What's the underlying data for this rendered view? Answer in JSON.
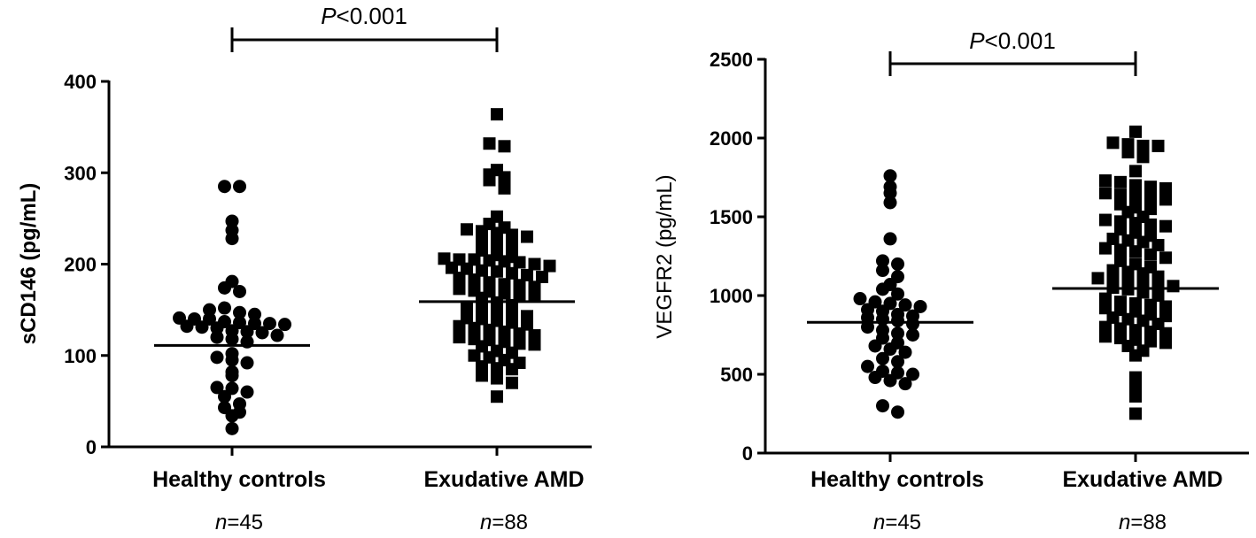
{
  "chart_data": [
    {
      "type": "scatter",
      "subtype": "dot-plot",
      "ylabel": "sCD146 (pg/mL)",
      "ylabel_bold": true,
      "ylim": [
        0,
        400
      ],
      "yticks": [
        0,
        100,
        200,
        300,
        400
      ],
      "grid": false,
      "significance": {
        "label_prefix": "P",
        "label_rest": "<0.001",
        "between": [
          0,
          1
        ]
      },
      "groups": [
        {
          "category": "Healthy controls",
          "n_prefix": "n",
          "n_rest": "=45",
          "marker": "circle",
          "mean": 111,
          "values": [
            285,
            285,
            247,
            237,
            228,
            181,
            174,
            170,
            150,
            152,
            147,
            145,
            141,
            140,
            140,
            137,
            136,
            135,
            135,
            134,
            132,
            131,
            130,
            127,
            126,
            125,
            122,
            120,
            118,
            115,
            102,
            98,
            95,
            92,
            82,
            78,
            65,
            64,
            60,
            55,
            47,
            43,
            38,
            34,
            20
          ]
        },
        {
          "category": "Exudative AMD",
          "n_prefix": "n",
          "n_rest": "=88",
          "marker": "square",
          "mean": 159,
          "values": [
            364,
            332,
            329,
            303,
            298,
            295,
            292,
            283,
            252,
            244,
            240,
            238,
            236,
            234,
            232,
            230,
            225,
            222,
            220,
            215,
            210,
            208,
            206,
            205,
            205,
            204,
            203,
            202,
            200,
            198,
            196,
            195,
            193,
            192,
            190,
            188,
            186,
            185,
            183,
            180,
            178,
            177,
            175,
            173,
            171,
            170,
            168,
            167,
            165,
            163,
            158,
            155,
            153,
            150,
            148,
            145,
            143,
            141,
            140,
            138,
            136,
            134,
            132,
            130,
            128,
            126,
            124,
            122,
            120,
            118,
            117,
            115,
            113,
            112,
            110,
            105,
            103,
            100,
            98,
            95,
            92,
            88,
            86,
            85,
            78,
            75,
            70,
            55
          ]
        }
      ]
    },
    {
      "type": "scatter",
      "subtype": "dot-plot",
      "ylabel": "VEGFR2 (pg/mL)",
      "ylabel_bold": false,
      "ylim": [
        0,
        2500
      ],
      "yticks": [
        0,
        500,
        1000,
        1500,
        2000,
        2500
      ],
      "grid": false,
      "significance": {
        "label_prefix": "P",
        "label_rest": "<0.001",
        "between": [
          0,
          1
        ]
      },
      "groups": [
        {
          "category": "Healthy controls",
          "n_prefix": "n",
          "n_rest": "=45",
          "marker": "circle",
          "mean": 830,
          "values": [
            1760,
            1690,
            1650,
            1590,
            1360,
            1220,
            1200,
            1160,
            1120,
            1070,
            1040,
            1010,
            980,
            960,
            950,
            940,
            930,
            910,
            900,
            880,
            870,
            860,
            850,
            840,
            820,
            800,
            780,
            760,
            750,
            730,
            700,
            680,
            660,
            640,
            600,
            580,
            550,
            520,
            510,
            500,
            480,
            460,
            440,
            300,
            260
          ]
        },
        {
          "category": "Exudative AMD",
          "n_prefix": "n",
          "n_rest": "=88",
          "marker": "square",
          "mean": 1045,
          "values": [
            2040,
            1970,
            1960,
            1950,
            1950,
            1910,
            1880,
            1790,
            1730,
            1720,
            1700,
            1690,
            1680,
            1650,
            1640,
            1630,
            1620,
            1610,
            1580,
            1560,
            1550,
            1530,
            1500,
            1480,
            1470,
            1460,
            1450,
            1440,
            1420,
            1400,
            1380,
            1360,
            1350,
            1340,
            1320,
            1300,
            1290,
            1280,
            1260,
            1240,
            1220,
            1200,
            1180,
            1160,
            1150,
            1140,
            1120,
            1110,
            1100,
            1090,
            1080,
            1070,
            1060,
            1050,
            1040,
            1020,
            1000,
            980,
            960,
            950,
            940,
            930,
            920,
            910,
            900,
            880,
            870,
            860,
            850,
            840,
            820,
            800,
            790,
            780,
            770,
            760,
            740,
            730,
            720,
            710,
            700,
            680,
            650,
            620,
            480,
            410,
            360,
            250
          ]
        }
      ]
    }
  ]
}
